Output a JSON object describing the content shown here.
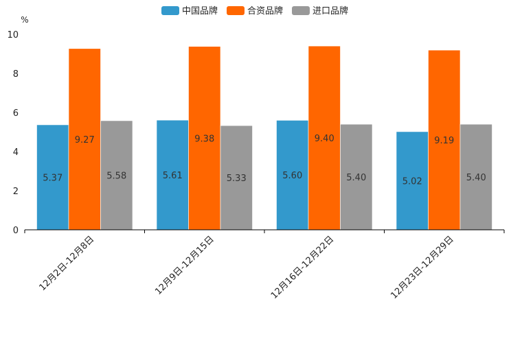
{
  "chart_data": {
    "type": "bar",
    "title": "",
    "xlabel": "",
    "ylabel": "%",
    "ylim": [
      0,
      10
    ],
    "yticks": [
      0,
      2,
      4,
      6,
      8,
      10
    ],
    "grid": false,
    "legend_position": "top-center",
    "categories": [
      "12月2日-12月8日",
      "12月9日-12月15日",
      "12月16日-12月22日",
      "12月23日-12月29日"
    ],
    "series": [
      {
        "name": "中国品牌",
        "color": "#3399cc",
        "values": [
          5.37,
          5.61,
          5.6,
          5.02
        ],
        "labels": [
          "5.37",
          "5.61",
          "5.60",
          "5.02"
        ]
      },
      {
        "name": "合资品牌",
        "color": "#ff6600",
        "values": [
          9.27,
          9.38,
          9.4,
          9.19
        ],
        "labels": [
          "9.27",
          "9.38",
          "9.40",
          "9.19"
        ]
      },
      {
        "name": "进口品牌",
        "color": "#999999",
        "values": [
          5.58,
          5.33,
          5.4,
          5.4
        ],
        "labels": [
          "5.58",
          "5.33",
          "5.40",
          "5.40"
        ]
      }
    ]
  }
}
